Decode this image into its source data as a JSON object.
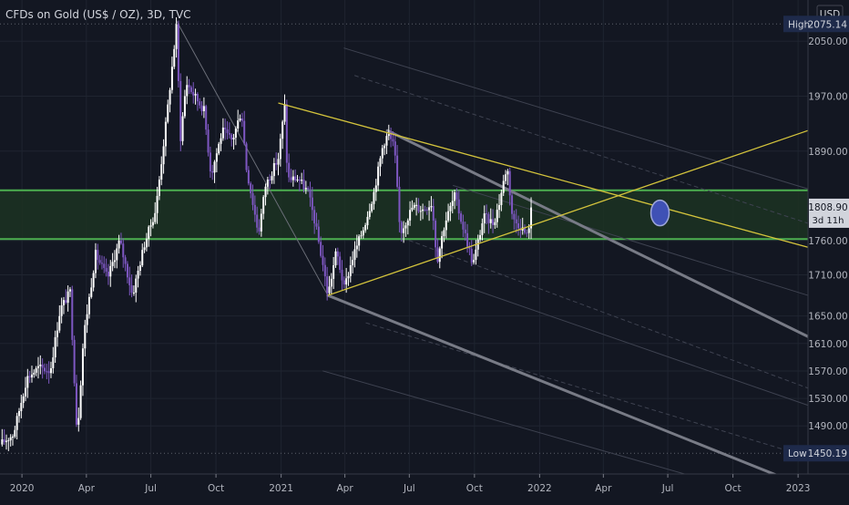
{
  "header": {
    "title": "CFDs on Gold (US$ / OZ), 3D, TVC",
    "currency": "USD"
  },
  "colors": {
    "background": "#131722",
    "grid": "#1f2430",
    "up_candle": "#ffffff",
    "down_candle": "#7e57c2",
    "zone_line": "#4caf50",
    "zone_fill": "#1c3322",
    "trendline": "#d4c43c",
    "channel": "#787b86",
    "price_label_bg": "#d1d4dc",
    "marker_fill": "#3f51b5",
    "marker_stroke": "#9fa8da"
  },
  "chart_data": {
    "type": "candlestick",
    "title": "CFDs on Gold (US$ / OZ), 3D, TVC",
    "ylim": [
      1420,
      2110
    ],
    "x_axis": {
      "range": [
        "2019-12-01",
        "2023-01-15"
      ],
      "ticks": [
        {
          "date": "2020-01-01",
          "label": "2020"
        },
        {
          "date": "2020-04-01",
          "label": "Apr"
        },
        {
          "date": "2020-07-01",
          "label": "Jul"
        },
        {
          "date": "2020-10-01",
          "label": "Oct"
        },
        {
          "date": "2021-01-01",
          "label": "2021"
        },
        {
          "date": "2021-04-01",
          "label": "Apr"
        },
        {
          "date": "2021-07-01",
          "label": "Jul"
        },
        {
          "date": "2021-10-01",
          "label": "Oct"
        },
        {
          "date": "2022-01-01",
          "label": "2022"
        },
        {
          "date": "2022-04-01",
          "label": "Apr"
        },
        {
          "date": "2022-07-01",
          "label": "Jul"
        },
        {
          "date": "2022-10-01",
          "label": "Oct"
        },
        {
          "date": "2023-01-01",
          "label": "2023"
        }
      ]
    },
    "y_axis": {
      "ticks": [
        1490,
        1530,
        1570,
        1610,
        1650,
        1710,
        1760,
        1890,
        1970,
        2050
      ]
    },
    "price_path": [
      [
        "2019-12-01",
        1463
      ],
      [
        "2019-12-20",
        1478
      ],
      [
        "2020-01-08",
        1560
      ],
      [
        "2020-01-25",
        1575
      ],
      [
        "2020-02-10",
        1570
      ],
      [
        "2020-02-24",
        1660
      ],
      [
        "2020-03-09",
        1685
      ],
      [
        "2020-03-19",
        1474
      ],
      [
        "2020-03-28",
        1620
      ],
      [
        "2020-04-14",
        1740
      ],
      [
        "2020-05-01",
        1705
      ],
      [
        "2020-05-18",
        1760
      ],
      [
        "2020-06-05",
        1680
      ],
      [
        "2020-06-22",
        1755
      ],
      [
        "2020-07-08",
        1805
      ],
      [
        "2020-07-24",
        1945
      ],
      [
        "2020-08-06",
        2070
      ],
      [
        "2020-08-12",
        1910
      ],
      [
        "2020-08-20",
        1990
      ],
      [
        "2020-09-01",
        1970
      ],
      [
        "2020-09-14",
        1950
      ],
      [
        "2020-09-24",
        1855
      ],
      [
        "2020-10-10",
        1920
      ],
      [
        "2020-10-24",
        1905
      ],
      [
        "2020-11-06",
        1950
      ],
      [
        "2020-11-13",
        1865
      ],
      [
        "2020-11-30",
        1770
      ],
      [
        "2020-12-10",
        1840
      ],
      [
        "2020-12-28",
        1880
      ],
      [
        "2021-01-06",
        1955
      ],
      [
        "2021-01-10",
        1850
      ],
      [
        "2021-01-25",
        1850
      ],
      [
        "2021-02-08",
        1830
      ],
      [
        "2021-02-18",
        1785
      ],
      [
        "2021-03-01",
        1725
      ],
      [
        "2021-03-08",
        1680
      ],
      [
        "2021-03-20",
        1745
      ],
      [
        "2021-03-31",
        1690
      ],
      [
        "2021-04-12",
        1735
      ],
      [
        "2021-04-28",
        1780
      ],
      [
        "2021-05-12",
        1830
      ],
      [
        "2021-05-25",
        1900
      ],
      [
        "2021-06-01",
        1915
      ],
      [
        "2021-06-10",
        1895
      ],
      [
        "2021-06-18",
        1770
      ],
      [
        "2021-07-06",
        1810
      ],
      [
        "2021-07-20",
        1805
      ],
      [
        "2021-08-02",
        1815
      ],
      [
        "2021-08-09",
        1730
      ],
      [
        "2021-08-20",
        1785
      ],
      [
        "2021-09-03",
        1825
      ],
      [
        "2021-09-20",
        1760
      ],
      [
        "2021-09-29",
        1725
      ],
      [
        "2021-10-14",
        1795
      ],
      [
        "2021-10-28",
        1785
      ],
      [
        "2021-11-05",
        1815
      ],
      [
        "2021-11-16",
        1870
      ],
      [
        "2021-11-24",
        1790
      ],
      [
        "2021-12-06",
        1780
      ],
      [
        "2021-12-15",
        1765
      ],
      [
        "2021-12-20",
        1808
      ]
    ],
    "candle_interval_days": 3,
    "zone": {
      "top": 1833,
      "bottom": 1762
    },
    "trendlines": [
      {
        "from": [
          "2020-12-28",
          1960
        ],
        "to": [
          "2023-01-15",
          1750
        ]
      },
      {
        "from": [
          "2021-03-08",
          1680
        ],
        "to": [
          "2023-01-15",
          1920
        ]
      }
    ],
    "channel_center": {
      "from": [
        "2020-08-06",
        2080
      ],
      "to": [
        "2021-03-08",
        1680
      ]
    },
    "channel_lines": [
      {
        "from": [
          "2021-05-31",
          1920
        ],
        "to": [
          "2023-01-15",
          1620
        ],
        "weight": "heavy"
      },
      {
        "from": [
          "2021-03-08",
          1680
        ],
        "to": [
          "2023-01-15",
          1400
        ],
        "weight": "heavy"
      }
    ],
    "channel_faint_lines": [
      {
        "from": [
          "2021-03-31",
          2040
        ],
        "to": [
          "2023-01-15",
          1835
        ]
      },
      {
        "from": [
          "2021-04-15",
          2000
        ],
        "to": [
          "2023-01-15",
          1785
        ]
      },
      {
        "from": [
          "2021-09-01",
          1840
        ],
        "to": [
          "2023-01-15",
          1680
        ]
      },
      {
        "from": [
          "2021-07-01",
          1760
        ],
        "to": [
          "2023-01-15",
          1545
        ]
      },
      {
        "from": [
          "2021-08-01",
          1710
        ],
        "to": [
          "2023-01-15",
          1520
        ]
      },
      {
        "from": [
          "2021-05-01",
          1640
        ],
        "to": [
          "2023-01-15",
          1445
        ]
      },
      {
        "from": [
          "2021-03-01",
          1570
        ],
        "to": [
          "2022-10-01",
          1400
        ]
      }
    ],
    "marker": {
      "date": "2022-06-20",
      "price": 1800
    },
    "current_price": {
      "value": "1808.90",
      "countdown": "3d 11h",
      "y": 1808.9
    },
    "high": {
      "label": "High",
      "value": "2075.14",
      "y": 2075.14
    },
    "low": {
      "label": "Low",
      "value": "1450.19",
      "y": 1450.19
    }
  }
}
